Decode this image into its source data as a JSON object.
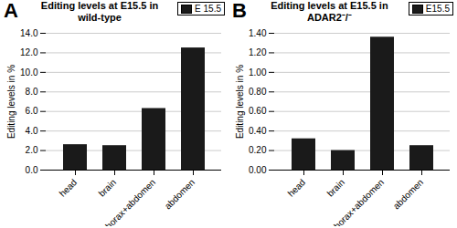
{
  "chart_data": [
    {
      "type": "bar",
      "annotation": "A",
      "title": "Editing levels at E15.5 in\nwild-type",
      "categories": [
        "head",
        "brain",
        "thorax+abdomen",
        "abdomen"
      ],
      "series": [
        {
          "name": "E 15.5",
          "color": "#1a1a1a",
          "values": [
            2.6,
            2.5,
            6.3,
            12.5
          ]
        }
      ],
      "ylabel": "Editing levels in %",
      "ylim": [
        0,
        14.0
      ],
      "yticks": [
        {
          "value": 0.0,
          "label": "0.0"
        },
        {
          "value": 2.0,
          "label": "2.0"
        },
        {
          "value": 4.0,
          "label": "4.0"
        },
        {
          "value": 6.0,
          "label": "6.0"
        },
        {
          "value": 8.0,
          "label": "8.0"
        },
        {
          "value": 10.0,
          "label": "10.0"
        },
        {
          "value": 12.0,
          "label": "12.0"
        },
        {
          "value": 14.0,
          "label": "14.0"
        }
      ],
      "grid": true,
      "legend": "upper right"
    },
    {
      "type": "bar",
      "annotation": "B",
      "title": "Editing levels at E15.5 in\nADAR2⁻/⁻",
      "categories": [
        "head",
        "brain",
        "thorax+abdomen",
        "abdomen"
      ],
      "series": [
        {
          "name": "E15.5",
          "color": "#1a1a1a",
          "values": [
            0.32,
            0.2,
            1.36,
            0.25
          ]
        }
      ],
      "ylabel": "Editing levels in %",
      "ylim": [
        0,
        1.4
      ],
      "yticks": [
        {
          "value": 0.0,
          "label": "0.00"
        },
        {
          "value": 0.2,
          "label": "0.20"
        },
        {
          "value": 0.4,
          "label": "0.40"
        },
        {
          "value": 0.6,
          "label": "0.60"
        },
        {
          "value": 0.8,
          "label": "0.80"
        },
        {
          "value": 1.0,
          "label": "1.00"
        },
        {
          "value": 1.2,
          "label": "1.20"
        },
        {
          "value": 1.4,
          "label": "1.40"
        }
      ],
      "grid": true,
      "legend": "upper right"
    }
  ]
}
